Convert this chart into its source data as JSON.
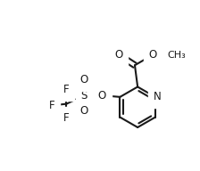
{
  "bg_color": "#ffffff",
  "line_color": "#1a1a1a",
  "line_width": 1.5,
  "font_size": 8.5,
  "figsize": [
    2.24,
    1.92
  ],
  "dpi": 100,
  "xlim": [
    -0.05,
    1.0
  ],
  "ylim": [
    0.15,
    0.95
  ]
}
